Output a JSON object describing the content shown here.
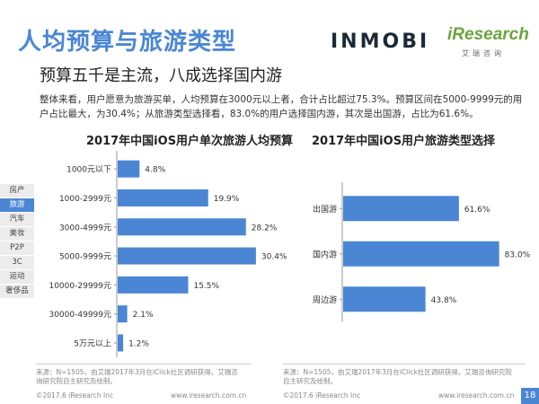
{
  "header": {
    "title": "人均预算与旅游类型",
    "subtitle": "预算五千是主流，八成选择国内游",
    "logo_inmobi": "INMOBI",
    "logo_iresearch": "iResearch",
    "logo_iresearch_tag": "艾瑞咨询"
  },
  "body_text": "整体来看，用户愿意为旅游买单，人均预算在3000元以上者，合计占比超过75.3%。预算区间在5000-9999元的用户占比最大，为30.4%；从旅游类型选择看，83.0%的用户选择国内游，其次是出国游，占比为61.6%。",
  "sidebar": {
    "items": [
      {
        "label": "房产"
      },
      {
        "label": "旅游"
      },
      {
        "label": "汽车"
      },
      {
        "label": "美妆"
      },
      {
        "label": "P2P"
      },
      {
        "label": "3C"
      },
      {
        "label": "运动"
      },
      {
        "label": "奢侈品"
      }
    ],
    "active_index": 1
  },
  "chart_data": [
    {
      "type": "bar",
      "orientation": "horizontal",
      "title": "2017年中国iOS用户单次旅游人均预算",
      "categories": [
        "1000元以下",
        "1000-2999元",
        "3000-4999元",
        "5000-9999元",
        "10000-29999元",
        "30000-49999元",
        "5万元以上"
      ],
      "values": [
        4.8,
        19.9,
        28.2,
        30.4,
        15.5,
        2.1,
        1.2
      ],
      "value_labels": [
        "4.8%",
        "19.9%",
        "28.2%",
        "30.4%",
        "15.5%",
        "2.1%",
        "1.2%"
      ],
      "unit": "%",
      "xlim": [
        0,
        32
      ],
      "color": "#4a86d4"
    },
    {
      "type": "bar",
      "orientation": "horizontal",
      "title": "2017年中国iOS用户旅游类型选择",
      "categories": [
        "出国游",
        "国内游",
        "周边游"
      ],
      "values": [
        61.6,
        83.0,
        43.8
      ],
      "value_labels": [
        "61.6%",
        "83.0%",
        "43.8%"
      ],
      "unit": "%",
      "xlim": [
        0,
        87
      ],
      "color": "#4a86d4"
    }
  ],
  "footer": {
    "source_left": "来源：N=1505，由艾瑞2017年3月在iClick社区调研获得。艾瑞咨询研究院自主研究及绘制。",
    "source_right": "来源：N=1505，由艾瑞2017年3月在iClick社区调研获得。艾瑞咨询研究院自主研究及绘制。",
    "copyright": "©2017.6 iResearch Inc",
    "website": "www.iresearch.com.cn",
    "page_number": "18"
  }
}
